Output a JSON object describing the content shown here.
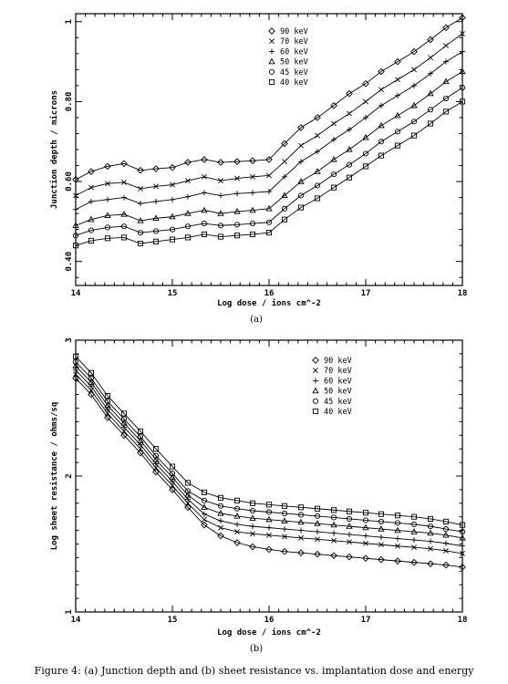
{
  "caption": "Figure 4: (a) Junction depth and (b) sheet resistance vs. implantation dose and energy",
  "chart_data": [
    {
      "type": "line",
      "sub_label": "(a)",
      "xlabel": "Log dose / ions cm^-2",
      "ylabel": "Junction depth / microns",
      "xlim": [
        14,
        18
      ],
      "ylim": [
        0.34,
        1.02
      ],
      "x_ticks": [
        "14",
        "15",
        "16",
        "17",
        "18"
      ],
      "y_ticks": [
        {
          "value": 0.4,
          "label": "0.40"
        },
        {
          "value": 0.6,
          "label": "0.60"
        },
        {
          "value": 0.8,
          "label": "0.80"
        },
        {
          "value": 1.0,
          "label": "1"
        }
      ],
      "legend_position": "top-center",
      "x": [
        14.0,
        14.16,
        14.33,
        14.5,
        14.67,
        14.83,
        15.0,
        15.16,
        15.33,
        15.5,
        15.67,
        15.83,
        16.0,
        16.16,
        16.33,
        16.5,
        16.67,
        16.83,
        17.0,
        17.16,
        17.33,
        17.5,
        17.67,
        17.83,
        18.0
      ],
      "series": [
        {
          "name": "90 keV",
          "marker": "diamond",
          "values": [
            0.605,
            0.625,
            0.638,
            0.645,
            0.628,
            0.632,
            0.635,
            0.648,
            0.655,
            0.648,
            0.65,
            0.652,
            0.655,
            0.695,
            0.735,
            0.76,
            0.79,
            0.82,
            0.845,
            0.875,
            0.9,
            0.925,
            0.955,
            0.985,
            1.01
          ]
        },
        {
          "name": "70 keV",
          "marker": "cross",
          "values": [
            0.565,
            0.585,
            0.595,
            0.598,
            0.582,
            0.588,
            0.592,
            0.602,
            0.612,
            0.602,
            0.608,
            0.612,
            0.615,
            0.65,
            0.69,
            0.715,
            0.745,
            0.77,
            0.8,
            0.83,
            0.855,
            0.88,
            0.91,
            0.94,
            0.97
          ]
        },
        {
          "name": "60 keV",
          "marker": "plus",
          "values": [
            0.53,
            0.55,
            0.555,
            0.56,
            0.545,
            0.55,
            0.555,
            0.562,
            0.572,
            0.565,
            0.57,
            0.572,
            0.575,
            0.612,
            0.65,
            0.675,
            0.705,
            0.73,
            0.76,
            0.79,
            0.815,
            0.84,
            0.87,
            0.9,
            0.925
          ]
        },
        {
          "name": "50 keV",
          "marker": "triangle",
          "values": [
            0.49,
            0.505,
            0.515,
            0.518,
            0.502,
            0.508,
            0.512,
            0.52,
            0.528,
            0.52,
            0.525,
            0.528,
            0.532,
            0.565,
            0.6,
            0.625,
            0.655,
            0.68,
            0.71,
            0.74,
            0.765,
            0.79,
            0.82,
            0.85,
            0.875
          ]
        },
        {
          "name": "45 keV",
          "marker": "circle",
          "values": [
            0.465,
            0.478,
            0.485,
            0.488,
            0.472,
            0.476,
            0.48,
            0.488,
            0.495,
            0.49,
            0.492,
            0.495,
            0.498,
            0.532,
            0.565,
            0.59,
            0.618,
            0.642,
            0.67,
            0.7,
            0.725,
            0.75,
            0.78,
            0.808,
            0.835
          ]
        },
        {
          "name": "40 keV",
          "marker": "square",
          "values": [
            0.44,
            0.452,
            0.458,
            0.46,
            0.445,
            0.45,
            0.455,
            0.46,
            0.468,
            0.462,
            0.465,
            0.468,
            0.472,
            0.505,
            0.535,
            0.558,
            0.585,
            0.61,
            0.638,
            0.665,
            0.69,
            0.715,
            0.745,
            0.775,
            0.8
          ]
        }
      ]
    },
    {
      "type": "line",
      "sub_label": "(b)",
      "xlabel": "Log dose / ions cm^-2",
      "ylabel": "Log sheet resistance / ohms/sq",
      "xlim": [
        14,
        18
      ],
      "ylim": [
        1,
        3
      ],
      "x_ticks": [
        "14",
        "15",
        "16",
        "17",
        "18"
      ],
      "y_ticks": [
        {
          "value": 1,
          "label": "1"
        },
        {
          "value": 2,
          "label": "2"
        },
        {
          "value": 3,
          "label": "3"
        }
      ],
      "legend_position": "top-right",
      "x": [
        14.0,
        14.16,
        14.33,
        14.5,
        14.67,
        14.83,
        15.0,
        15.16,
        15.33,
        15.5,
        15.67,
        15.83,
        16.0,
        16.16,
        16.33,
        16.5,
        16.67,
        16.83,
        17.0,
        17.16,
        17.33,
        17.5,
        17.67,
        17.83,
        18.0
      ],
      "series": [
        {
          "name": "90 keV",
          "marker": "diamond",
          "values": [
            2.72,
            2.6,
            2.43,
            2.3,
            2.17,
            2.03,
            1.9,
            1.77,
            1.64,
            1.56,
            1.51,
            1.48,
            1.46,
            1.445,
            1.435,
            1.425,
            1.415,
            1.405,
            1.395,
            1.385,
            1.375,
            1.365,
            1.355,
            1.345,
            1.33
          ]
        },
        {
          "name": "70 keV",
          "marker": "cross",
          "values": [
            2.75,
            2.63,
            2.46,
            2.33,
            2.2,
            2.06,
            1.93,
            1.8,
            1.68,
            1.62,
            1.59,
            1.575,
            1.565,
            1.555,
            1.545,
            1.535,
            1.525,
            1.515,
            1.505,
            1.495,
            1.485,
            1.475,
            1.465,
            1.45,
            1.43
          ]
        },
        {
          "name": "60 keV",
          "marker": "plus",
          "values": [
            2.78,
            2.66,
            2.49,
            2.36,
            2.23,
            2.09,
            1.96,
            1.83,
            1.72,
            1.67,
            1.645,
            1.63,
            1.62,
            1.61,
            1.6,
            1.59,
            1.58,
            1.57,
            1.56,
            1.55,
            1.54,
            1.53,
            1.52,
            1.505,
            1.485
          ]
        },
        {
          "name": "50 keV",
          "marker": "triangle",
          "values": [
            2.81,
            2.69,
            2.52,
            2.39,
            2.26,
            2.12,
            1.99,
            1.86,
            1.77,
            1.725,
            1.705,
            1.69,
            1.68,
            1.67,
            1.66,
            1.65,
            1.64,
            1.63,
            1.62,
            1.61,
            1.6,
            1.59,
            1.58,
            1.565,
            1.545
          ]
        },
        {
          "name": "45 keV",
          "marker": "circle",
          "values": [
            2.84,
            2.72,
            2.55,
            2.42,
            2.29,
            2.15,
            2.02,
            1.89,
            1.82,
            1.78,
            1.76,
            1.745,
            1.735,
            1.725,
            1.715,
            1.705,
            1.695,
            1.685,
            1.675,
            1.665,
            1.655,
            1.645,
            1.63,
            1.61,
            1.59
          ]
        },
        {
          "name": "40 keV",
          "marker": "square",
          "values": [
            2.88,
            2.76,
            2.59,
            2.46,
            2.33,
            2.2,
            2.07,
            1.95,
            1.88,
            1.84,
            1.82,
            1.8,
            1.79,
            1.78,
            1.77,
            1.76,
            1.75,
            1.74,
            1.73,
            1.72,
            1.71,
            1.7,
            1.685,
            1.665,
            1.64
          ]
        }
      ]
    }
  ]
}
